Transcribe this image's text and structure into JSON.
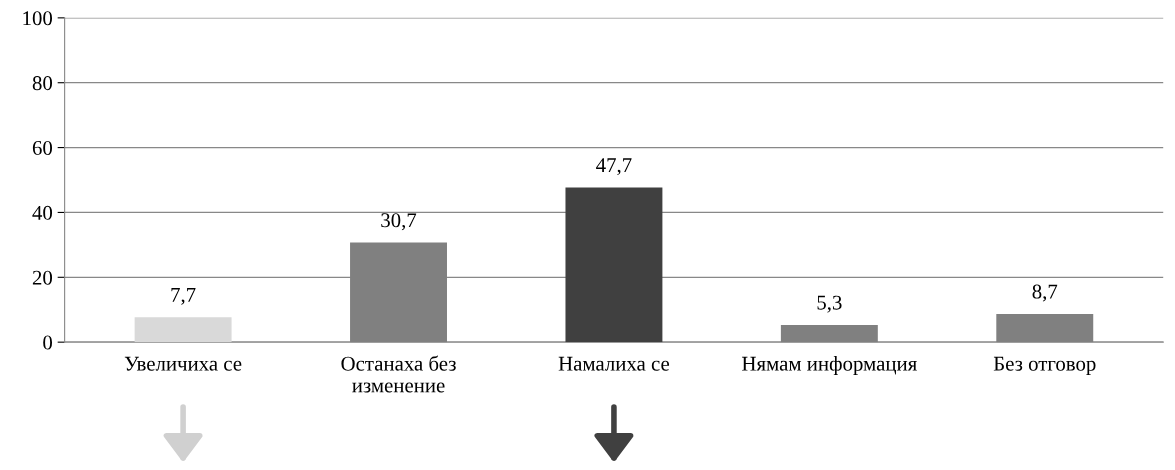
{
  "chart_data": {
    "type": "bar",
    "categories": [
      "Увеличиха се",
      "Останаха без\nизменение",
      "Намалиха се",
      "Нямам информация",
      "Без отговор"
    ],
    "values": [
      7.7,
      30.7,
      47.7,
      5.3,
      8.7
    ],
    "colors": [
      "#d9d9d9",
      "#808080",
      "#404040",
      "#808080",
      "#808080"
    ],
    "value_labels": [
      "7,7",
      "30,7",
      "47,7",
      "5,3",
      "8,7"
    ],
    "ylim": [
      0,
      100
    ],
    "yticks": [
      0,
      20,
      40,
      60,
      80,
      100
    ],
    "grid": "y"
  }
}
